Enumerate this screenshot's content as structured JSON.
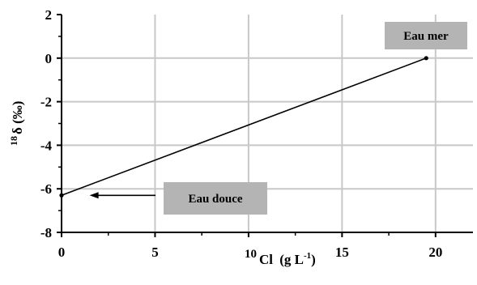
{
  "chart_data": {
    "type": "line",
    "title": "",
    "xlabel_prefix": "10",
    "xlabel_main": "Cl",
    "xlabel_unit": "(g L",
    "xlabel_unit_sup": "-1",
    "xlabel_unit_close": ")",
    "ylabel_sup": "18",
    "ylabel_main": "δ (‰)",
    "xlim": [
      0,
      22
    ],
    "ylim": [
      -8,
      2
    ],
    "x_ticks": [
      0,
      5,
      10,
      15,
      20
    ],
    "x_tick_labels": [
      "0",
      "5",
      "",
      "15",
      "20"
    ],
    "y_ticks": [
      -8,
      -6,
      -4,
      -2,
      0,
      2
    ],
    "y_tick_labels": [
      "-8",
      "-6",
      "-4",
      "-2",
      "0",
      "2"
    ],
    "grid": true,
    "series": [
      {
        "x": [
          0,
          19.5
        ],
        "y": [
          -6.3,
          0
        ],
        "color": "#000000"
      }
    ],
    "annotations": [
      {
        "text": "Eau mer",
        "x": 19.5,
        "y": 0
      },
      {
        "text": "Eau douce",
        "x": 1.5,
        "y": -6.3,
        "arrow": true
      }
    ],
    "colors": {
      "plot_background": "#ffffff",
      "grid": "#c8c8c8",
      "axis": "#000000",
      "annotation_box": "#b4b4b4"
    }
  }
}
